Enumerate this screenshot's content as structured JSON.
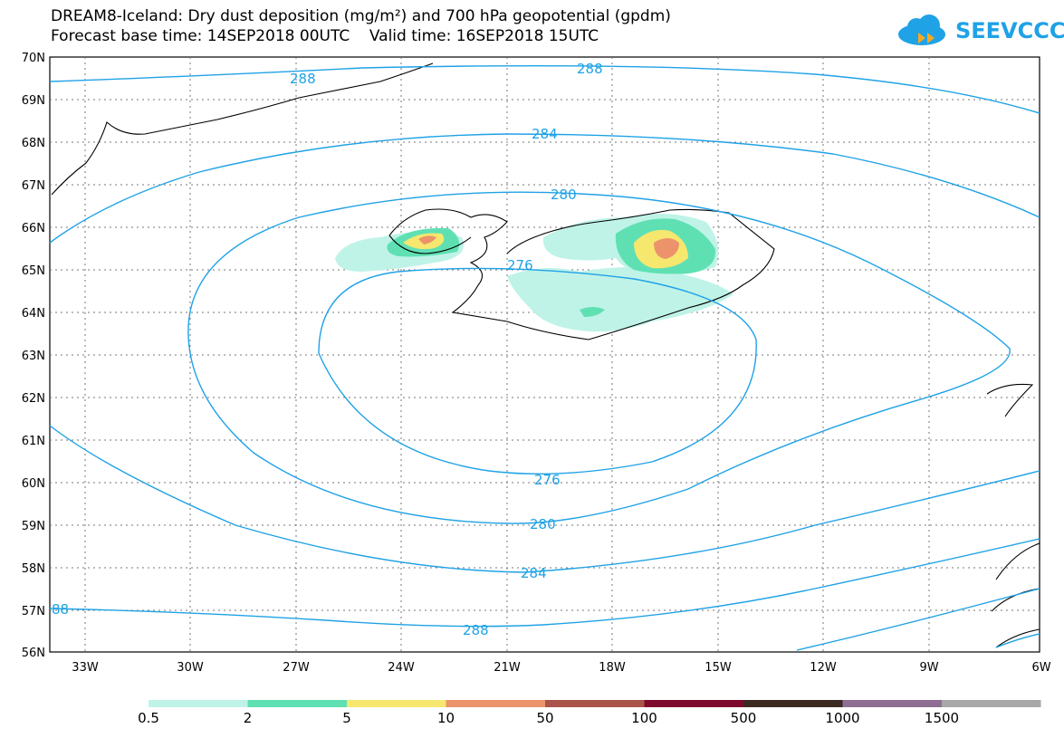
{
  "header": {
    "title_line1": "DREAM8-Iceland: Dry dust deposition (mg/m²) and 700 hPa geopotential (gpdm)",
    "title_line2": "Forecast base time: 14SEP2018 00UTC    Valid time: 16SEP2018 15UTC",
    "logo_text": "SEEVCCC"
  },
  "colors": {
    "contour": "#1fa2e6",
    "coast": "#000000",
    "grid": "#666666"
  },
  "map": {
    "lat_labels": [
      "70N",
      "69N",
      "68N",
      "67N",
      "66N",
      "65N",
      "64N",
      "63N",
      "62N",
      "61N",
      "60N",
      "59N",
      "58N",
      "57N",
      "56N"
    ],
    "lon_labels": [
      "33W",
      "30W",
      "27W",
      "24W",
      "21W",
      "18W",
      "15W",
      "12W",
      "9W",
      "6W"
    ],
    "contour_labels": [
      {
        "text": "288",
        "id": "c288a"
      },
      {
        "text": "288",
        "id": "c288b"
      },
      {
        "text": "284",
        "id": "c284a"
      },
      {
        "text": "280",
        "id": "c280a"
      },
      {
        "text": "276",
        "id": "c276a"
      },
      {
        "text": "276",
        "id": "c276b"
      },
      {
        "text": "280",
        "id": "c280b"
      },
      {
        "text": "284",
        "id": "c284b"
      },
      {
        "text": "288",
        "id": "c288c"
      },
      {
        "text": "88",
        "id": "c288d"
      }
    ]
  },
  "legend": {
    "colors": [
      "#bff3e8",
      "#5fe0b3",
      "#f6e76e",
      "#ec936c",
      "#a9544a",
      "#7d0a2e",
      "#3b2a21",
      "#8e6f93",
      "#a8a8a8"
    ],
    "labels": [
      "0.5",
      "2",
      "5",
      "10",
      "50",
      "100",
      "500",
      "1000",
      "1500"
    ]
  }
}
